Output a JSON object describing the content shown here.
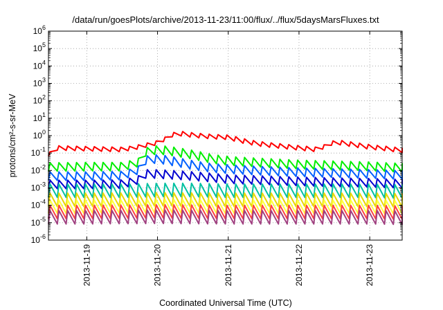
{
  "chart_data": {
    "type": "line",
    "title": "/data/run/goesPlots/archive/2013-11-23/11:00/flux/../flux/5daysMarsFluxes.txt",
    "xlabel": "Coordinated Universal Time (UTC)",
    "ylabel": "protons/cm²-s-sr-MeV",
    "y_scale": "log",
    "ylim": [
      1e-06,
      1000000.0
    ],
    "y_ticks": [
      {
        "exp": "-6",
        "value": 1e-06
      },
      {
        "exp": "-5",
        "value": 1e-05
      },
      {
        "exp": "-4",
        "value": 0.0001
      },
      {
        "exp": "-3",
        "value": 0.001
      },
      {
        "exp": "-2",
        "value": 0.01
      },
      {
        "exp": "-1",
        "value": 0.1
      },
      {
        "exp": "0",
        "value": 1
      },
      {
        "exp": "1",
        "value": 10
      },
      {
        "exp": "2",
        "value": 100
      },
      {
        "exp": "3",
        "value": 1000
      },
      {
        "exp": "4",
        "value": 10000
      },
      {
        "exp": "5",
        "value": 100000
      },
      {
        "exp": "6",
        "value": 1000000
      }
    ],
    "y_tick_base": "10",
    "xlim": [
      "2013-11-18T11:00",
      "2013-11-23T11:00"
    ],
    "x_ticks": [
      "2013-11-19",
      "2013-11-20",
      "2013-11-21",
      "2013-11-22",
      "2013-11-23"
    ],
    "grid": true,
    "grid_style": "dotted",
    "legend": "none",
    "series": [
      {
        "color": "#ff0000",
        "points": [
          [
            "2013-11-18T11:00",
            0.1
          ],
          [
            "2013-11-18T14:00",
            0.22
          ],
          [
            "2013-11-19T00:00",
            0.2
          ],
          [
            "2013-11-19T12:00",
            0.18
          ],
          [
            "2013-11-19T17:00",
            0.25
          ],
          [
            "2013-11-20T00:00",
            0.45
          ],
          [
            "2013-11-20T06:00",
            1.6
          ],
          [
            "2013-11-20T12:00",
            1.2
          ],
          [
            "2013-11-20T18:00",
            1.0
          ],
          [
            "2013-11-21T00:00",
            0.9
          ],
          [
            "2013-11-21T06:00",
            0.5
          ],
          [
            "2013-11-21T12:00",
            0.35
          ],
          [
            "2013-11-21T18:00",
            0.28
          ],
          [
            "2013-11-22T00:00",
            0.22
          ],
          [
            "2013-11-22T06:00",
            0.18
          ],
          [
            "2013-11-22T12:00",
            0.5
          ],
          [
            "2013-11-22T18:00",
            0.35
          ],
          [
            "2013-11-23T00:00",
            0.25
          ],
          [
            "2013-11-23T06:00",
            0.2
          ],
          [
            "2013-11-23T11:00",
            0.16
          ]
        ]
      },
      {
        "color": "#00ee00",
        "points": [
          [
            "2013-11-18T11:00",
            0.02
          ],
          [
            "2013-11-19T00:00",
            0.021
          ],
          [
            "2013-11-19T12:00",
            0.021
          ],
          [
            "2013-11-19T18:00",
            0.04
          ],
          [
            "2013-11-19T20:00",
            0.15
          ],
          [
            "2013-11-20T00:00",
            0.2
          ],
          [
            "2013-11-20T06:00",
            0.15
          ],
          [
            "2013-11-20T12:00",
            0.1
          ],
          [
            "2013-11-20T18:00",
            0.06
          ],
          [
            "2013-11-21T00:00",
            0.045
          ],
          [
            "2013-11-21T12:00",
            0.035
          ],
          [
            "2013-11-22T00:00",
            0.028
          ],
          [
            "2013-11-22T12:00",
            0.025
          ],
          [
            "2013-11-23T00:00",
            0.022
          ],
          [
            "2013-11-23T11:00",
            0.018
          ]
        ]
      },
      {
        "color": "#0060ff",
        "points": [
          [
            "2013-11-18T11:00",
            0.006
          ],
          [
            "2013-11-19T00:00",
            0.006
          ],
          [
            "2013-11-19T12:00",
            0.0065
          ],
          [
            "2013-11-19T18:00",
            0.015
          ],
          [
            "2013-11-19T20:00",
            0.05
          ],
          [
            "2013-11-20T00:00",
            0.06
          ],
          [
            "2013-11-20T06:00",
            0.04
          ],
          [
            "2013-11-20T12:00",
            0.025
          ],
          [
            "2013-11-20T18:00",
            0.018
          ],
          [
            "2013-11-21T00:00",
            0.015
          ],
          [
            "2013-11-21T12:00",
            0.012
          ],
          [
            "2013-11-22T00:00",
            0.01
          ],
          [
            "2013-11-22T12:00",
            0.009
          ],
          [
            "2013-11-23T00:00",
            0.008
          ],
          [
            "2013-11-23T11:00",
            0.007
          ]
        ]
      },
      {
        "color": "#0000d0",
        "points": [
          [
            "2013-11-18T11:00",
            0.002
          ],
          [
            "2013-11-19T00:00",
            0.002
          ],
          [
            "2013-11-19T12:00",
            0.0021
          ],
          [
            "2013-11-19T18:00",
            0.004
          ],
          [
            "2013-11-19T20:00",
            0.008
          ],
          [
            "2013-11-20T00:00",
            0.008
          ],
          [
            "2013-11-20T06:00",
            0.007
          ],
          [
            "2013-11-20T12:00",
            0.006
          ],
          [
            "2013-11-20T18:00",
            0.005
          ],
          [
            "2013-11-21T00:00",
            0.004
          ],
          [
            "2013-11-21T12:00",
            0.0035
          ],
          [
            "2013-11-22T00:00",
            0.003
          ],
          [
            "2013-11-22T12:00",
            0.0027
          ],
          [
            "2013-11-23T00:00",
            0.0025
          ],
          [
            "2013-11-23T11:00",
            0.0022
          ]
        ]
      },
      {
        "color": "#00c0a0",
        "points": [
          [
            "2013-11-18T11:00",
            0.001
          ],
          [
            "2013-11-19T00:00",
            0.001
          ],
          [
            "2013-11-19T12:00",
            0.001
          ],
          [
            "2013-11-20T00:00",
            0.0011
          ],
          [
            "2013-11-20T12:00",
            0.0011
          ],
          [
            "2013-11-21T00:00",
            0.001
          ],
          [
            "2013-11-21T12:00",
            0.001
          ],
          [
            "2013-11-22T00:00",
            0.001
          ],
          [
            "2013-11-22T12:00",
            0.001
          ],
          [
            "2013-11-23T00:00",
            0.001
          ],
          [
            "2013-11-23T11:00",
            0.0009
          ]
        ]
      },
      {
        "color": "#e8d800",
        "points": [
          [
            "2013-11-18T11:00",
            0.0003
          ],
          [
            "2013-11-19T00:00",
            0.0003
          ],
          [
            "2013-11-20T00:00",
            0.00032
          ],
          [
            "2013-11-21T00:00",
            0.0003
          ],
          [
            "2013-11-22T00:00",
            0.0003
          ],
          [
            "2013-11-23T00:00",
            0.0003
          ],
          [
            "2013-11-23T11:00",
            0.00028
          ]
        ]
      },
      {
        "color": "#ffff40",
        "points": [
          [
            "2013-11-18T11:00",
            0.00012
          ],
          [
            "2013-11-19T00:00",
            0.00012
          ],
          [
            "2013-11-20T00:00",
            0.00013
          ],
          [
            "2013-11-21T00:00",
            0.00012
          ],
          [
            "2013-11-22T00:00",
            0.00012
          ],
          [
            "2013-11-23T00:00",
            0.00012
          ],
          [
            "2013-11-23T11:00",
            0.00011
          ]
        ]
      },
      {
        "color": "#ff4040",
        "points": [
          [
            "2013-11-18T11:00",
            6e-05
          ],
          [
            "2013-11-19T00:00",
            6e-05
          ],
          [
            "2013-11-20T00:00",
            6.5e-05
          ],
          [
            "2013-11-21T00:00",
            6e-05
          ],
          [
            "2013-11-22T00:00",
            6e-05
          ],
          [
            "2013-11-23T00:00",
            6e-05
          ],
          [
            "2013-11-23T11:00",
            5.5e-05
          ]
        ]
      },
      {
        "color": "#a04080",
        "points": [
          [
            "2013-11-18T11:00",
            3e-05
          ],
          [
            "2013-11-19T00:00",
            3e-05
          ],
          [
            "2013-11-20T00:00",
            3.2e-05
          ],
          [
            "2013-11-21T00:00",
            3e-05
          ],
          [
            "2013-11-22T00:00",
            3e-05
          ],
          [
            "2013-11-23T00:00",
            3e-05
          ],
          [
            "2013-11-23T11:00",
            2.8e-05
          ]
        ]
      }
    ]
  }
}
